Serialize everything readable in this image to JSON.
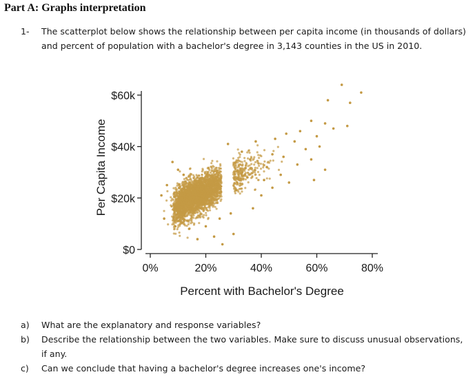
{
  "heading": "Part A: Graphs interpretation",
  "question1": {
    "number": "1-",
    "text": "The scatterplot below shows the relationship between per capita income (in thousands of dollars) and percent of population with a bachelor's degree in 3,143 counties in the US in 2010."
  },
  "chart_data": {
    "type": "scatter",
    "xlabel": "Percent with Bachelor's Degree",
    "ylabel": "Per Capita Income",
    "x_ticks": [
      "0%",
      "20%",
      "40%",
      "60%",
      "80%"
    ],
    "x_tick_values": [
      0,
      20,
      40,
      60,
      80
    ],
    "y_ticks": [
      "$0",
      "$20k",
      "$40k",
      "$60k"
    ],
    "y_tick_values": [
      0,
      20,
      40,
      60
    ],
    "xlim": [
      0,
      80
    ],
    "ylim": [
      0,
      60
    ],
    "point_color": "#c49a45",
    "cluster": {
      "x_center": 17,
      "y_center": 21,
      "count": 3143
    },
    "outliers": [
      {
        "x": 69,
        "y": 64
      },
      {
        "x": 76,
        "y": 61
      },
      {
        "x": 64,
        "y": 58
      },
      {
        "x": 72,
        "y": 57
      },
      {
        "x": 58,
        "y": 50
      },
      {
        "x": 63,
        "y": 49
      },
      {
        "x": 66,
        "y": 47
      },
      {
        "x": 71,
        "y": 48
      },
      {
        "x": 54,
        "y": 46
      },
      {
        "x": 60,
        "y": 44
      },
      {
        "x": 49,
        "y": 45
      },
      {
        "x": 52,
        "y": 42
      },
      {
        "x": 56,
        "y": 39
      },
      {
        "x": 61,
        "y": 40
      },
      {
        "x": 45,
        "y": 43
      },
      {
        "x": 58,
        "y": 35
      },
      {
        "x": 53,
        "y": 33
      },
      {
        "x": 63,
        "y": 31
      },
      {
        "x": 47,
        "y": 29
      },
      {
        "x": 50,
        "y": 26
      },
      {
        "x": 59,
        "y": 27
      },
      {
        "x": 41,
        "y": 27
      },
      {
        "x": 38,
        "y": 42
      },
      {
        "x": 44,
        "y": 37
      },
      {
        "x": 42,
        "y": 32
      },
      {
        "x": 36,
        "y": 35
      },
      {
        "x": 33,
        "y": 38
      },
      {
        "x": 28,
        "y": 41
      },
      {
        "x": 35,
        "y": 28
      },
      {
        "x": 31,
        "y": 23
      },
      {
        "x": 8,
        "y": 34
      },
      {
        "x": 10,
        "y": 31
      },
      {
        "x": 12,
        "y": 29
      },
      {
        "x": 6,
        "y": 25
      },
      {
        "x": 4,
        "y": 21
      },
      {
        "x": 5,
        "y": 12
      },
      {
        "x": 9,
        "y": 9
      },
      {
        "x": 14,
        "y": 8
      },
      {
        "x": 20,
        "y": 9
      },
      {
        "x": 25,
        "y": 12
      },
      {
        "x": 29,
        "y": 14
      },
      {
        "x": 37,
        "y": 16
      },
      {
        "x": 30,
        "y": 6
      },
      {
        "x": 17,
        "y": 4
      },
      {
        "x": 23,
        "y": 5
      },
      {
        "x": 26,
        "y": 2
      },
      {
        "x": 11,
        "y": 14
      },
      {
        "x": 40,
        "y": 21
      },
      {
        "x": 44,
        "y": 24
      },
      {
        "x": 48,
        "y": 36
      }
    ]
  },
  "questions": [
    {
      "label": "a)",
      "text": "What are the explanatory and response variables?"
    },
    {
      "label": "b)",
      "text": "Describe the relationship between the two variables. Make sure to discuss unusual observations, if any."
    },
    {
      "label": "c)",
      "text": "Can we conclude that having a bachelor's degree increases one's income?"
    }
  ]
}
